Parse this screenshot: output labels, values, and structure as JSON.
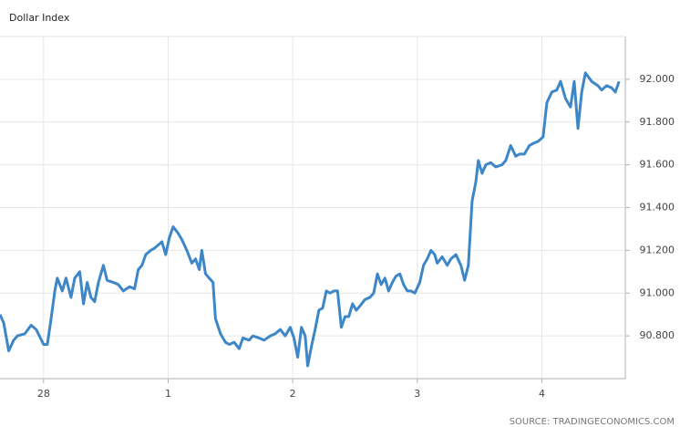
{
  "chart_data": {
    "type": "line",
    "title": "Dollar Index",
    "source": "SOURCE: TRADINGECONOMICS.COM",
    "x": [
      -0.35,
      -0.32,
      -0.28,
      -0.24,
      -0.21,
      -0.15,
      -0.1,
      -0.06,
      0,
      0.03,
      0.06,
      0.09,
      0.11,
      0.15,
      0.18,
      0.22,
      0.25,
      0.29,
      0.32,
      0.35,
      0.38,
      0.41,
      0.44,
      0.48,
      0.51,
      0.56,
      0.6,
      0.64,
      0.69,
      0.73,
      0.76,
      0.79,
      0.82,
      0.86,
      0.89,
      0.93,
      0.95,
      0.98,
      1.01,
      1.04,
      1.08,
      1.11,
      1.15,
      1.19,
      1.22,
      1.25,
      1.27,
      1.3,
      1.33,
      1.36,
      1.38,
      1.42,
      1.46,
      1.49,
      1.53,
      1.57,
      1.6,
      1.65,
      1.68,
      1.73,
      1.77,
      1.82,
      1.86,
      1.9,
      1.94,
      1.98,
      2.01,
      2.04,
      2.07,
      2.1,
      2.12,
      2.15,
      2.18,
      2.21,
      2.24,
      2.27,
      2.3,
      2.33,
      2.36,
      2.39,
      2.42,
      2.45,
      2.48,
      2.51,
      2.54,
      2.58,
      2.62,
      2.65,
      2.68,
      2.71,
      2.74,
      2.77,
      2.8,
      2.83,
      2.86,
      2.89,
      2.92,
      2.95,
      2.98,
      3.02,
      3.05,
      3.08,
      3.11,
      3.14,
      3.16,
      3.2,
      3.24,
      3.27,
      3.31,
      3.35,
      3.38,
      3.41,
      3.44,
      3.47,
      3.49,
      3.52,
      3.55,
      3.59,
      3.63,
      3.68,
      3.71,
      3.75,
      3.79,
      3.82,
      3.86,
      3.9,
      3.93,
      3.97,
      4.01,
      4.04,
      4.08,
      4.12,
      4.15,
      4.19,
      4.23,
      4.26,
      4.29,
      4.32,
      4.35,
      4.4,
      4.45,
      4.48,
      4.52,
      4.56,
      4.59,
      4.62
    ],
    "series": [
      {
        "name": "Dollar Index",
        "color": "#3d87c8",
        "values": [
          90.9,
          90.86,
          90.73,
          90.78,
          90.8,
          90.81,
          90.85,
          90.83,
          90.76,
          90.76,
          90.88,
          91.01,
          91.07,
          91.01,
          91.07,
          90.98,
          91.07,
          91.1,
          90.95,
          91.05,
          90.98,
          90.96,
          91.05,
          91.13,
          91.06,
          91.05,
          91.04,
          91.01,
          91.03,
          91.02,
          91.11,
          91.13,
          91.18,
          91.2,
          91.21,
          91.23,
          91.24,
          91.18,
          91.26,
          91.31,
          91.28,
          91.25,
          91.2,
          91.14,
          91.16,
          91.11,
          91.2,
          91.09,
          91.07,
          91.05,
          90.88,
          90.81,
          90.77,
          90.76,
          90.77,
          90.74,
          90.79,
          90.78,
          90.8,
          90.79,
          90.78,
          90.8,
          90.81,
          90.83,
          90.8,
          90.84,
          90.79,
          90.7,
          90.84,
          90.8,
          90.66,
          90.75,
          90.83,
          90.92,
          90.93,
          91.01,
          91.0,
          91.01,
          91.01,
          90.84,
          90.89,
          90.89,
          90.95,
          90.92,
          90.94,
          90.97,
          90.98,
          91.0,
          91.09,
          91.04,
          91.07,
          91.01,
          91.05,
          91.08,
          91.09,
          91.04,
          91.01,
          91.01,
          91.0,
          91.05,
          91.13,
          91.16,
          91.2,
          91.18,
          91.14,
          91.17,
          91.13,
          91.16,
          91.18,
          91.13,
          91.06,
          91.13,
          91.43,
          91.52,
          91.62,
          91.56,
          91.6,
          91.61,
          91.59,
          91.6,
          91.62,
          91.69,
          91.64,
          91.65,
          91.65,
          91.69,
          91.7,
          91.71,
          91.73,
          91.89,
          91.94,
          91.95,
          91.99,
          91.91,
          91.87,
          91.99,
          91.77,
          91.94,
          92.03,
          91.99,
          91.97,
          91.95,
          91.97,
          91.96,
          91.94,
          91.99
        ]
      }
    ],
    "xlim": [
      -0.35,
      4.67
    ],
    "xticks": [
      {
        "value": 0,
        "label": "28"
      },
      {
        "value": 1,
        "label": "1"
      },
      {
        "value": 2,
        "label": "2"
      },
      {
        "value": 3,
        "label": "3"
      },
      {
        "value": 4,
        "label": "4"
      }
    ],
    "ylim": [
      90.6,
      92.2
    ],
    "yticks": [
      {
        "value": 90.8,
        "label": "90.800"
      },
      {
        "value": 91.0,
        "label": "91.000"
      },
      {
        "value": 91.2,
        "label": "91.200"
      },
      {
        "value": 91.4,
        "label": "91.400"
      },
      {
        "value": 91.6,
        "label": "91.600"
      },
      {
        "value": 91.8,
        "label": "91.800"
      },
      {
        "value": 92.0,
        "label": "92.000"
      }
    ],
    "grid": true
  }
}
